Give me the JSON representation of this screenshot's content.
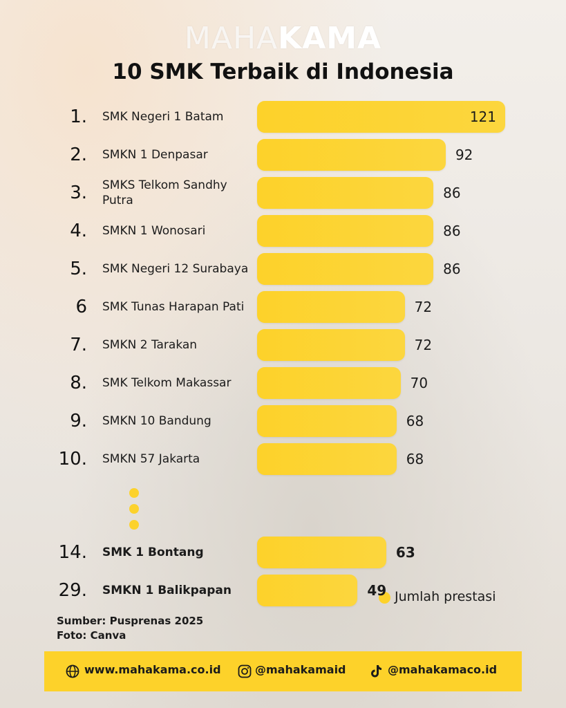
{
  "brand": {
    "light": "MAHA",
    "bold": "KAMA"
  },
  "chart_data": {
    "type": "bar",
    "title": "10 SMK Terbaik di Indonesia",
    "ranks": [
      "1.",
      "2.",
      "3.",
      "4.",
      "5.",
      "6",
      "7.",
      "8.",
      "9.",
      "10.",
      "14.",
      "29."
    ],
    "categories": [
      "SMK Negeri 1 Batam",
      "SMKN 1 Denpasar",
      "SMKS Telkom Sandhy Putra",
      "SMKN 1 Wonosari",
      "SMK Negeri 12 Surabaya",
      "SMK Tunas Harapan Pati",
      "SMKN 2 Tarakan",
      "SMK Telkom Makassar",
      "SMKN 10 Bandung",
      "SMKN 57 Jakarta",
      "SMK 1 Bontang",
      "SMKN 1 Balikpapan"
    ],
    "series": [
      {
        "name": "Jumlah prestasi",
        "color": "#fdd22a",
        "values": [
          121,
          92,
          86,
          86,
          86,
          72,
          72,
          70,
          68,
          68,
          63,
          49
        ]
      }
    ],
    "orientation": "horizontal"
  },
  "source": "Sumber: Pusprenas 2025",
  "photo": "Foto: Canva",
  "footer": {
    "website": "www.mahakama.co.id",
    "instagram": "@mahakamaid",
    "tiktok": "@mahakamaco.id"
  }
}
